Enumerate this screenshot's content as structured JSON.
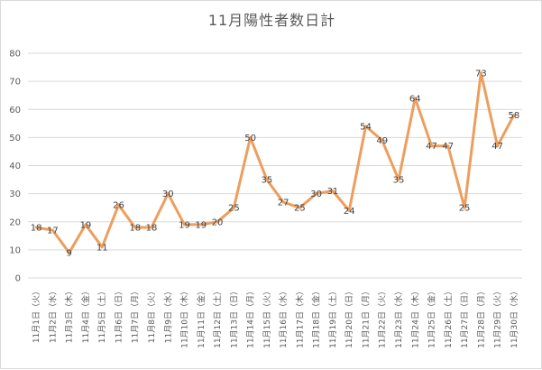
{
  "chart_data": {
    "type": "line",
    "title": "11月陽性者数日計",
    "xlabel": "",
    "ylabel": "",
    "ylim": [
      0,
      80
    ],
    "yticks": [
      0,
      10,
      20,
      30,
      40,
      50,
      60,
      70,
      80
    ],
    "grid": true,
    "legend": "none",
    "line_color": "#ED9E5E",
    "categories": [
      "11月1日（火）",
      "11月2日（水）",
      "11月3日（木）",
      "11月4日（金）",
      "11月5日（土）",
      "11月6日（日）",
      "11月7日（月）",
      "11月8日（火）",
      "11月9日（水）",
      "11月10日（木）",
      "11月11日（金）",
      "11月12日（土）",
      "11月13日（日）",
      "11月14日（月）",
      "11月15日（火）",
      "11月16日（水）",
      "11月17日（木）",
      "11月18日（金）",
      "11月19日（土）",
      "11月20日（日）",
      "11月21日（月）",
      "11月22日（火）",
      "11月23日（水）",
      "11月24日（木）",
      "11月25日（金）",
      "11月26日（土）",
      "11月27日（日）",
      "11月28日（月）",
      "11月29日（火）",
      "11月30日（水）"
    ],
    "series": [
      {
        "values": [
          18,
          17,
          9,
          19,
          11,
          26,
          18,
          18,
          30,
          19,
          19,
          20,
          25,
          50,
          35,
          27,
          25,
          30,
          31,
          24,
          54,
          49,
          35,
          64,
          47,
          47,
          25,
          73,
          47,
          58
        ]
      }
    ]
  }
}
